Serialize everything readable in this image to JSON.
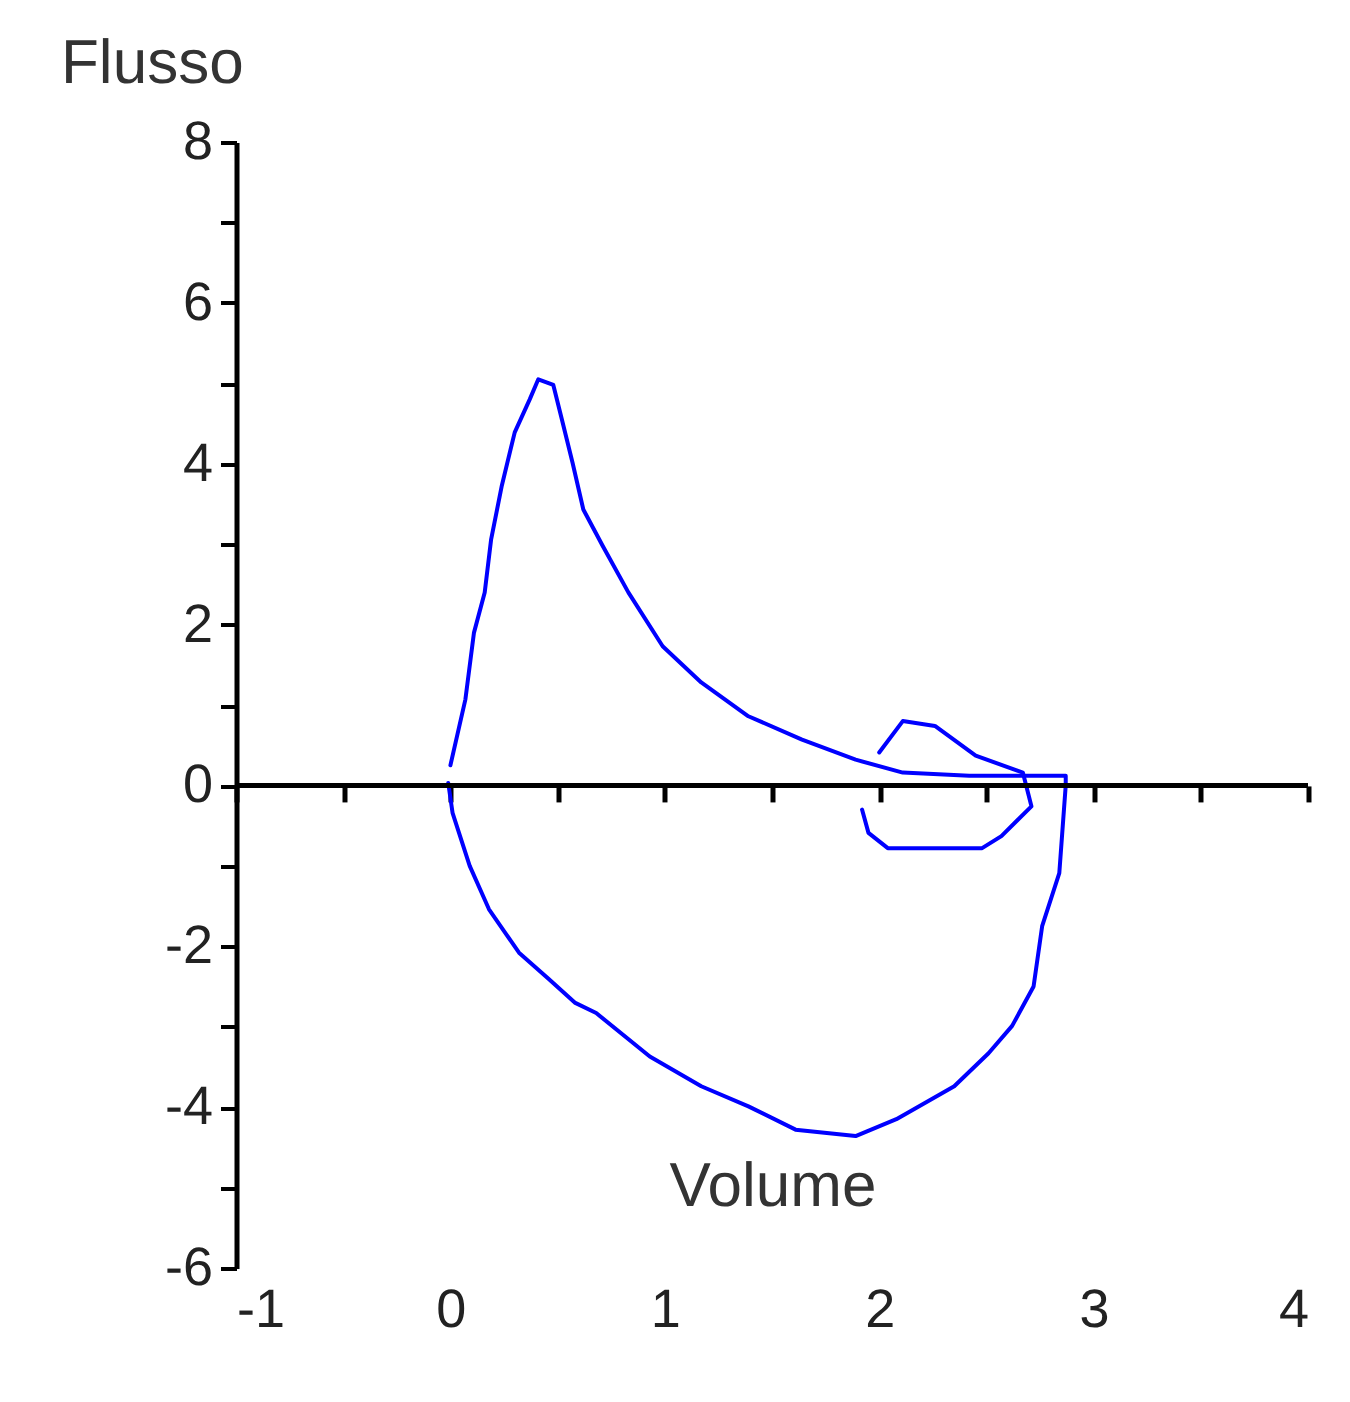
{
  "chart_data": {
    "type": "line",
    "xlabel": "Volume",
    "ylabel": "Flusso",
    "xlim": [
      -1,
      4
    ],
    "ylim": [
      -6,
      8
    ],
    "xticks": [
      -1,
      {
        "value": -0.5,
        "label": null
      },
      0,
      {
        "value": 0.5,
        "label": null
      },
      1,
      {
        "value": 1.5,
        "label": null
      },
      2,
      {
        "value": 2.5,
        "label": null
      },
      3,
      {
        "value": 3.5,
        "label": null
      },
      4
    ],
    "yticks": [
      -6,
      {
        "value": -5,
        "label": null
      },
      -4,
      {
        "value": -3,
        "label": null
      },
      -2,
      {
        "value": -1,
        "label": null
      },
      0,
      {
        "value": 1,
        "label": null
      },
      2,
      {
        "value": 3,
        "label": null
      },
      4,
      {
        "value": 5,
        "label": null
      },
      6,
      {
        "value": 7,
        "label": null
      },
      8
    ],
    "ref_lines": [
      {
        "axis": "y",
        "value": 0,
        "color": "#000000"
      }
    ],
    "grid": false,
    "marker": "none",
    "line_style": "solid",
    "series": [
      {
        "color": "#0000ff",
        "x": [
          0,
          0.07,
          0.11,
          0.16,
          0.19,
          0.24,
          0.3,
          0.37,
          0.41,
          0.48,
          0.52,
          0.57,
          0.62,
          0.71,
          0.83,
          0.99,
          1.17,
          1.39,
          1.64,
          1.89,
          2.11,
          2.42,
          2.87,
          2.87,
          2.84,
          2.76,
          2.72,
          2.62,
          2.51,
          2.35,
          2.08,
          1.89,
          1.61,
          1.39,
          1.17,
          0.93,
          0.68,
          0.58,
          0.46,
          0.32,
          0.18,
          0.09,
          0.01,
          -0.01
        ],
        "values": [
          0.25,
          1.07,
          1.9,
          2.4,
          3.06,
          3.73,
          4.39,
          4.8,
          5.05,
          4.98,
          4.55,
          4.01,
          3.43,
          2.98,
          2.4,
          1.73,
          1.28,
          0.86,
          0.57,
          0.32,
          0.16,
          0.12,
          0.12,
          0,
          -1.09,
          -1.75,
          -2.5,
          -2.99,
          -3.33,
          -3.74,
          -4.15,
          -4.36,
          -4.28,
          -3.99,
          -3.74,
          -3.37,
          -2.83,
          -2.7,
          -2.41,
          -2.08,
          -1.54,
          -1,
          -0.34,
          0.03
        ]
      },
      {
        "color": "#0000ff",
        "x": [
          2.0,
          2.11,
          2.26,
          2.45,
          2.67,
          2.71,
          2.57,
          2.48,
          2.04,
          1.95,
          1.92
        ],
        "values": [
          0.41,
          0.8,
          0.74,
          0.37,
          0.16,
          -0.26,
          -0.63,
          -0.78,
          -0.78,
          -0.59,
          -0.3
        ]
      }
    ]
  }
}
